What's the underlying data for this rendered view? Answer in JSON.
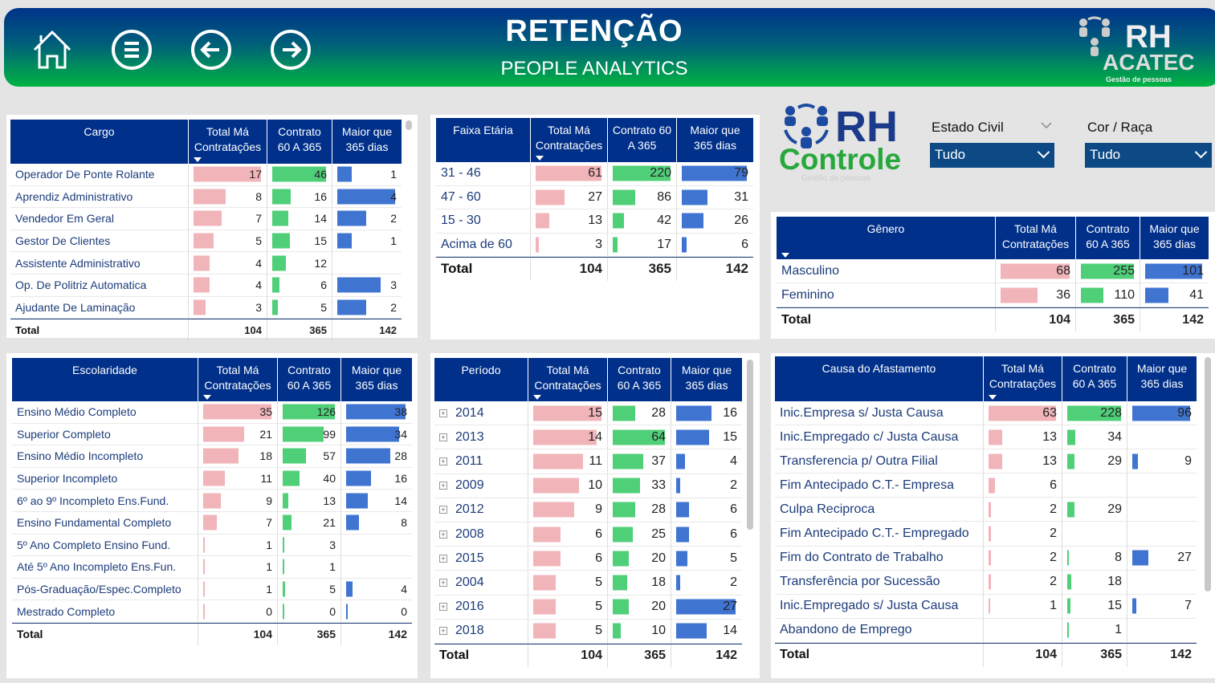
{
  "header": {
    "title": "RETENÇÃO",
    "subtitle": "PEOPLE  ANALYTICS",
    "logo_top": "RH",
    "logo_mid": "ACATEC",
    "logo_tag": "Gestão de pessoas"
  },
  "logo2": {
    "rh": "RH",
    "controle": "Controle",
    "tag": "Gestão de pessoas"
  },
  "filters": [
    {
      "label": "Estado Civil",
      "value": "Tudo"
    },
    {
      "label": "Cor / Raça",
      "value": "Tudo"
    }
  ],
  "colors": {
    "header": "#00308a",
    "pink": "#f0b4b9",
    "green": "#50cf79",
    "blue": "#3f74d1"
  },
  "tables": {
    "cargo": {
      "headers": [
        "Cargo",
        "Total Má Contratações",
        "Contrato 60 A 365",
        "Maior que 365 dias"
      ],
      "rows": [
        [
          "Operador De Ponte Rolante",
          17,
          46,
          1
        ],
        [
          "Aprendiz Administrativo",
          8,
          16,
          4
        ],
        [
          "Vendedor Em Geral",
          7,
          14,
          2
        ],
        [
          "Gestor De Clientes",
          5,
          15,
          1
        ],
        [
          "Assistente Administrativo",
          4,
          12,
          null
        ],
        [
          "Op. De Politriz Automatica",
          4,
          6,
          3
        ],
        [
          "Ajudante De Laminação",
          3,
          5,
          2
        ]
      ],
      "total": [
        "Total",
        104,
        365,
        142
      ]
    },
    "faixa": {
      "headers": [
        "Faixa Etária",
        "Total Má Contratações",
        "Contrato 60 A 365",
        "Maior que 365 dias"
      ],
      "rows": [
        [
          "31 - 46",
          61,
          220,
          79
        ],
        [
          "47 - 60",
          27,
          86,
          31
        ],
        [
          "15 - 30",
          13,
          42,
          26
        ],
        [
          "Acima de 60",
          3,
          17,
          6
        ]
      ],
      "total": [
        "Total",
        104,
        365,
        142
      ]
    },
    "genero": {
      "headers": [
        "Gênero",
        "Total Má Contratações",
        "Contrato 60 A 365",
        "Maior que 365 dias"
      ],
      "rows": [
        [
          "Masculino",
          68,
          255,
          101
        ],
        [
          "Feminino",
          36,
          110,
          41
        ]
      ],
      "total": [
        "Total",
        104,
        365,
        142
      ]
    },
    "escolaridade": {
      "headers": [
        "Escolaridade",
        "Total Má Contratações",
        "Contrato 60 A 365",
        "Maior que 365 dias"
      ],
      "rows": [
        [
          "Ensino Médio Completo",
          35,
          126,
          38
        ],
        [
          "Superior Completo",
          21,
          99,
          34
        ],
        [
          "Ensino Médio Incompleto",
          18,
          57,
          28
        ],
        [
          "Superior Incompleto",
          11,
          40,
          16
        ],
        [
          "6º ao 9º Incompleto Ens.Fund.",
          9,
          13,
          14
        ],
        [
          "Ensino Fundamental Completo",
          7,
          21,
          8
        ],
        [
          "5º Ano Completo Ensino Fund.",
          1,
          3,
          null
        ],
        [
          "Até 5º Ano Incompleto Ens.Fun.",
          1,
          1,
          null
        ],
        [
          "Pós-Graduação/Espec.Completo",
          1,
          5,
          4
        ],
        [
          "Mestrado Completo",
          0,
          0,
          0
        ]
      ],
      "total": [
        "Total",
        104,
        365,
        142
      ]
    },
    "periodo": {
      "headers": [
        "Período",
        "Total Má Contratações",
        "Contrato 60 A 365",
        "Maior que 365 dias"
      ],
      "rows": [
        [
          "2014",
          15,
          28,
          16
        ],
        [
          "2013",
          14,
          64,
          15
        ],
        [
          "2011",
          11,
          37,
          4
        ],
        [
          "2009",
          10,
          33,
          2
        ],
        [
          "2012",
          9,
          28,
          6
        ],
        [
          "2008",
          6,
          25,
          6
        ],
        [
          "2015",
          6,
          20,
          5
        ],
        [
          "2004",
          5,
          18,
          2
        ],
        [
          "2016",
          5,
          20,
          27
        ],
        [
          "2018",
          5,
          10,
          14
        ]
      ],
      "total": [
        "Total",
        104,
        365,
        142
      ]
    },
    "causa": {
      "headers": [
        "Causa do Afastamento",
        "Total Má Contratações",
        "Contrato 60 A 365",
        "Maior que 365 dias"
      ],
      "rows": [
        [
          "Inic.Empresa s/ Justa Causa",
          63,
          228,
          96
        ],
        [
          "Inic.Empregado c/ Justa Causa",
          13,
          34,
          null
        ],
        [
          "Transferencia p/ Outra Filial",
          13,
          29,
          9
        ],
        [
          "Fim Antecipado C.T.- Empresa",
          6,
          null,
          null
        ],
        [
          "Culpa Reciproca",
          2,
          29,
          null
        ],
        [
          "Fim Antecipado C.T.- Empregado",
          2,
          null,
          null
        ],
        [
          "Fim do Contrato de Trabalho",
          2,
          8,
          27
        ],
        [
          "Transferência por Sucessão",
          2,
          18,
          null
        ],
        [
          "Inic.Empregado s/ Justa Causa",
          1,
          15,
          7
        ],
        [
          "Abandono de Emprego",
          null,
          1,
          null
        ]
      ],
      "total": [
        "Total",
        104,
        365,
        142
      ]
    }
  }
}
